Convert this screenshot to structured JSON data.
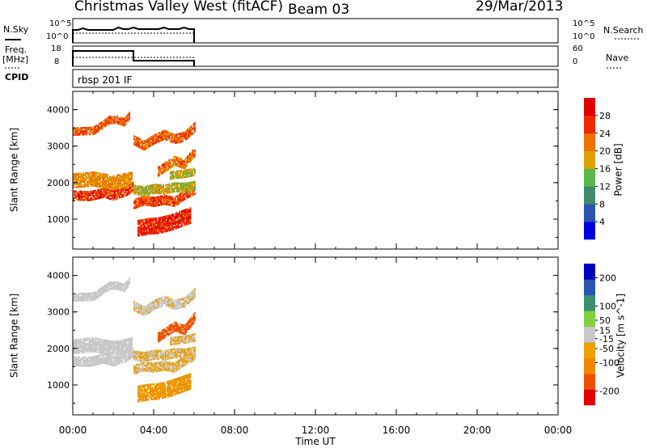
{
  "header": {
    "station": "Christmas Valley West (fitACF)",
    "beam": "Beam 03",
    "date": "29/Mar/2013"
  },
  "summary": {
    "nsky_label": "N.Sky",
    "nsky_ticks": [
      "10^5",
      "10^0"
    ],
    "nsearch_label": "N.Search",
    "nsearch_ticks": [
      "10^5",
      "10^0"
    ],
    "freq_label": "Freq.",
    "freq_unit": "[MHz]",
    "freq_ticks": [
      "18",
      "8"
    ],
    "nave_label": "Nave",
    "nave_ticks": [
      "60",
      "0"
    ],
    "cpid_label": "CPID",
    "cpid_value": "rbsp 201 IF"
  },
  "colors": {
    "power": [
      "#0000e0",
      "#2a55b0",
      "#3f8a6a",
      "#5ab84a",
      "#e0a000",
      "#ee7000",
      "#ee2a00",
      "#e00000"
    ],
    "velocity": [
      "#e00000",
      "#ee5000",
      "#ee8800",
      "#eea000",
      "#c8c8c8",
      "#80d040",
      "#3a9070",
      "#2a55b0",
      "#0000c0"
    ]
  },
  "chart_data": [
    {
      "type": "heatmap",
      "name": "power",
      "xlabel": "Time UT",
      "ylabel": "Slant Range [km]",
      "xticks": [
        "00:00",
        "04:00",
        "08:00",
        "12:00",
        "16:00",
        "20:00",
        "00:00"
      ],
      "xlim_hours": [
        0,
        24
      ],
      "ylim_km": [
        180,
        4500
      ],
      "yticks": [
        1000,
        2000,
        3000,
        4000
      ],
      "colorbar_label": "Power [dB]",
      "colorbar_ticks": [
        "4",
        "8",
        "12",
        "16",
        "20",
        "24",
        "28"
      ],
      "colorbar_range": [
        0,
        32
      ],
      "bands": [
        {
          "t": [
            0.0,
            1.0,
            1.8,
            2.2,
            2.5,
            2.8
          ],
          "r": [
            3400,
            3420,
            3720,
            3720,
            3650,
            3850
          ],
          "w": 110,
          "level": 24
        },
        {
          "t": [
            0.0,
            0.8,
            1.5,
            2.0,
            2.6,
            3.0
          ],
          "r": [
            1650,
            1630,
            1720,
            1640,
            1760,
            1900
          ],
          "w": 130,
          "level": 26
        },
        {
          "t": [
            0.0,
            1.0,
            2.0,
            2.9
          ],
          "r": [
            2050,
            2100,
            2000,
            2100
          ],
          "w": 200,
          "level": 20
        },
        {
          "t": [
            3.0,
            3.5,
            4.0,
            4.5,
            5.0,
            5.5,
            6.0
          ],
          "r": [
            3150,
            3000,
            3180,
            3300,
            3180,
            3250,
            3500
          ],
          "w": 120,
          "level": 23
        },
        {
          "t": [
            3.0,
            3.5,
            4.0,
            4.5,
            5.0,
            5.5,
            6.0
          ],
          "r": [
            1400,
            1500,
            1460,
            1520,
            1460,
            1650,
            1800
          ],
          "w": 120,
          "level": 25
        },
        {
          "t": [
            3.0,
            3.5,
            4.0,
            4.5,
            5.0,
            5.5,
            6.0
          ],
          "r": [
            1800,
            1750,
            1820,
            1800,
            1860,
            1850,
            1900
          ],
          "w": 120,
          "level": 17
        },
        {
          "t": [
            4.2,
            5.0,
            5.5,
            6.0
          ],
          "r": [
            2300,
            2600,
            2500,
            2850
          ],
          "w": 130,
          "level": 22
        },
        {
          "t": [
            4.8,
            5.6,
            6.0
          ],
          "r": [
            2200,
            2250,
            2300
          ],
          "w": 110,
          "level": 17
        },
        {
          "t": [
            3.2,
            3.7,
            4.2,
            4.8,
            5.3,
            5.8
          ],
          "r": [
            750,
            800,
            820,
            900,
            1000,
            1100
          ],
          "w": 220,
          "level": 27
        }
      ]
    },
    {
      "type": "heatmap",
      "name": "velocity",
      "xlabel": "Time UT",
      "ylabel": "Slant Range [km]",
      "xticks": [
        "00:00",
        "04:00",
        "08:00",
        "12:00",
        "16:00",
        "20:00",
        "00:00"
      ],
      "xlim_hours": [
        0,
        24
      ],
      "ylim_km": [
        180,
        4500
      ],
      "yticks": [
        1000,
        2000,
        3000,
        4000
      ],
      "colorbar_label": "Velocity [m s^-1]",
      "colorbar_ticks": [
        "-200",
        "-100",
        "-50",
        "-15",
        "15",
        "50",
        "100",
        "200"
      ],
      "colorbar_range": [
        -250,
        250
      ],
      "bands": [
        {
          "t": [
            0.0,
            1.0,
            1.8,
            2.2,
            2.5,
            2.8
          ],
          "r": [
            3400,
            3420,
            3720,
            3720,
            3650,
            3850
          ],
          "w": 110,
          "level": 0
        },
        {
          "t": [
            0.0,
            0.8,
            1.5,
            2.0,
            2.6,
            3.0
          ],
          "r": [
            1650,
            1630,
            1720,
            1640,
            1760,
            1900
          ],
          "w": 130,
          "level": 0
        },
        {
          "t": [
            0.0,
            1.0,
            2.0,
            2.9
          ],
          "r": [
            2050,
            2100,
            2000,
            2100
          ],
          "w": 200,
          "level": 0
        },
        {
          "t": [
            3.0,
            3.5,
            4.0,
            4.5,
            5.0,
            5.5,
            6.0
          ],
          "r": [
            3150,
            3000,
            3180,
            3300,
            3180,
            3250,
            3500
          ],
          "w": 120,
          "level": -20
        },
        {
          "t": [
            3.0,
            3.5,
            4.0,
            4.5,
            5.0,
            5.5,
            6.0
          ],
          "r": [
            1400,
            1500,
            1460,
            1520,
            1460,
            1650,
            1800
          ],
          "w": 120,
          "level": -30
        },
        {
          "t": [
            3.0,
            3.5,
            4.0,
            4.5,
            5.0,
            5.5,
            6.0
          ],
          "r": [
            1800,
            1750,
            1820,
            1800,
            1860,
            1850,
            1900
          ],
          "w": 120,
          "level": -30
        },
        {
          "t": [
            4.2,
            5.0,
            5.5,
            6.0
          ],
          "r": [
            2300,
            2600,
            2500,
            2850
          ],
          "w": 130,
          "level": -150
        },
        {
          "t": [
            4.8,
            5.6,
            6.0
          ],
          "r": [
            2200,
            2250,
            2300
          ],
          "w": 110,
          "level": -30
        },
        {
          "t": [
            3.2,
            3.7,
            4.2,
            4.8,
            5.3,
            5.8
          ],
          "r": [
            750,
            800,
            820,
            900,
            1000,
            1100
          ],
          "w": 220,
          "level": -80
        }
      ]
    }
  ]
}
